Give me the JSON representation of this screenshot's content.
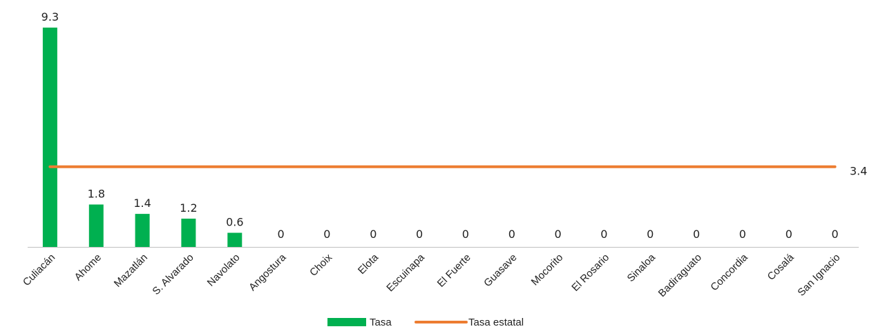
{
  "chart_data": {
    "type": "bar",
    "categories": [
      "Culiacán",
      "Ahome",
      "Mazatlán",
      "S. Alvarado",
      "Navolato",
      "Angostura",
      "Choix",
      "Elota",
      "Escuinapa",
      "El Fuerte",
      "Guasave",
      "Mocorito",
      "El Rosario",
      "Sinaloa",
      "Badiraguato",
      "Concordia",
      "Cosalá",
      "San Ignacio"
    ],
    "value_labels": [
      "9.3",
      "1.8",
      "1.4",
      "1.2",
      "0.6",
      "0",
      "0",
      "0",
      "0",
      "0",
      "0",
      "0",
      "0",
      "0",
      "0",
      "0",
      "0",
      "0"
    ],
    "series": [
      {
        "name": "Tasa",
        "values": [
          9.3,
          1.8,
          1.4,
          1.2,
          0.6,
          0,
          0,
          0,
          0,
          0,
          0,
          0,
          0,
          0,
          0,
          0,
          0,
          0
        ],
        "color": "#00b050"
      },
      {
        "name": "Tasa estatal",
        "type": "line",
        "value": 3.4,
        "label": "3.4",
        "color": "#ed7d31"
      }
    ],
    "ylim": [
      0,
      9.3
    ],
    "grid": false,
    "legend": "bottom-center"
  }
}
